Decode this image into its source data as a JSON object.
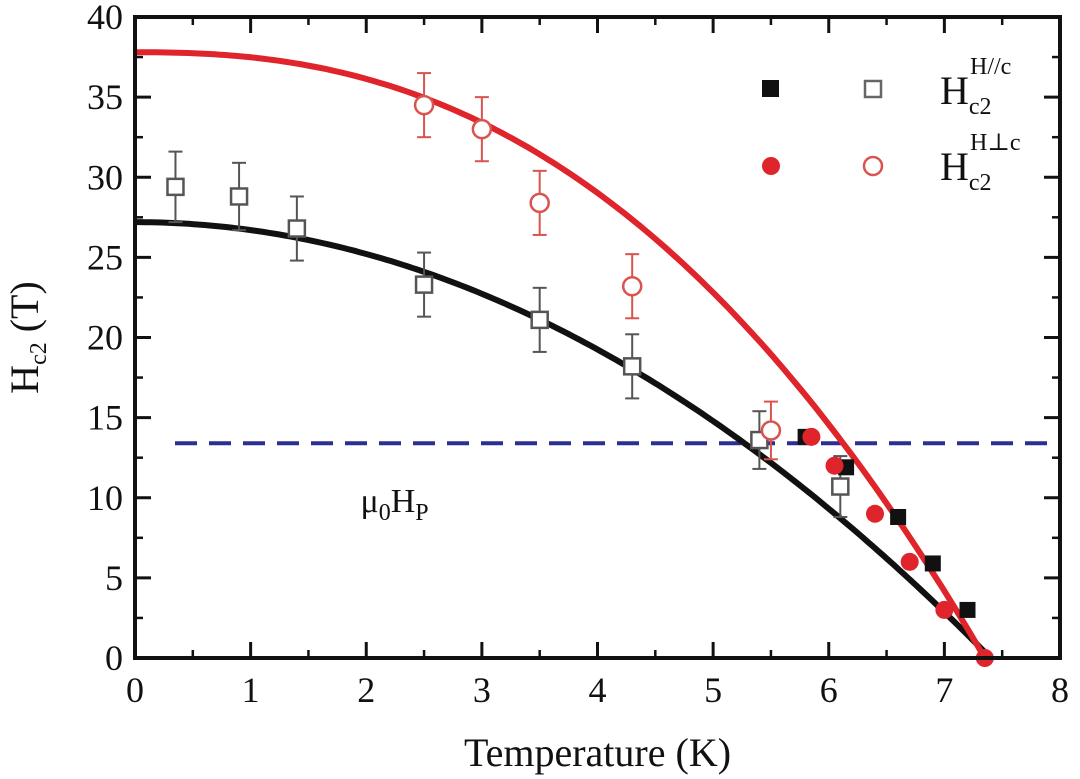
{
  "chart_data": {
    "type": "scatter",
    "xlabel": "Temperature (K)",
    "ylabel": {
      "base": "H",
      "sub": "c2",
      "unit": " (T)"
    },
    "xlim": [
      0,
      8
    ],
    "ylim": [
      0,
      40
    ],
    "xticks": [
      "0",
      "1",
      "2",
      "3",
      "4",
      "5",
      "6",
      "7",
      "8"
    ],
    "yticks": [
      "0",
      "5",
      "10",
      "15",
      "20",
      "25",
      "30",
      "35",
      "40"
    ],
    "grid": false,
    "legend_position": "top-right",
    "colors": {
      "parallel": "#111111",
      "parallel_open": "#555555",
      "perp": "#e0242b",
      "perp_open": "#d9534f",
      "pauli": "#2b2f8f"
    },
    "legend": [
      {
        "key": "parallel",
        "base": "H",
        "sub": "c2",
        "sup": "H//c"
      },
      {
        "key": "perp",
        "base": "H",
        "sub": "c2",
        "sup": "H⊥c"
      }
    ],
    "series": [
      {
        "name": "H//c open",
        "marker": "square-open",
        "color": "parallel_open",
        "points": [
          [
            0.35,
            29.4,
            2.2
          ],
          [
            0.9,
            28.8,
            2.1
          ],
          [
            1.4,
            26.8,
            2.0
          ],
          [
            2.5,
            23.3,
            2.0
          ],
          [
            3.5,
            21.1,
            2.0
          ],
          [
            4.3,
            18.2,
            2.0
          ],
          [
            5.4,
            13.6,
            1.8
          ],
          [
            6.1,
            10.7,
            1.9
          ]
        ]
      },
      {
        "name": "H//c filled",
        "marker": "square-filled",
        "color": "parallel",
        "points": [
          [
            5.8,
            13.8
          ],
          [
            6.15,
            11.9
          ],
          [
            6.6,
            8.8
          ],
          [
            6.9,
            5.9
          ],
          [
            7.2,
            3.0
          ]
        ]
      },
      {
        "name": "H⊥c open",
        "marker": "circle-open",
        "color": "perp_open",
        "points": [
          [
            2.5,
            34.5,
            2.0
          ],
          [
            3.0,
            33.0,
            2.0
          ],
          [
            3.5,
            28.4,
            2.0
          ],
          [
            4.3,
            23.2,
            2.0
          ],
          [
            5.5,
            14.2,
            1.8
          ]
        ]
      },
      {
        "name": "H⊥c filled",
        "marker": "circle-filled",
        "color": "perp",
        "points": [
          [
            5.85,
            13.8
          ],
          [
            6.05,
            12.0
          ],
          [
            6.4,
            9.0
          ],
          [
            6.7,
            6.0
          ],
          [
            7.0,
            3.0
          ],
          [
            7.35,
            0.0
          ]
        ]
      },
      {
        "name": "H//c fit",
        "marker": "line",
        "color": "parallel",
        "model": {
          "h0": 27.2,
          "tc": 7.4,
          "n": 2
        }
      },
      {
        "name": "H⊥c fit",
        "marker": "line",
        "color": "perp",
        "model": {
          "h0": 37.8,
          "tc": 7.35,
          "n": 2.4
        }
      }
    ],
    "pauli_limit": {
      "value": 13.4,
      "label_base": "μ",
      "label_sub0": "0",
      "label_base2": "H",
      "label_sub": "P"
    }
  }
}
